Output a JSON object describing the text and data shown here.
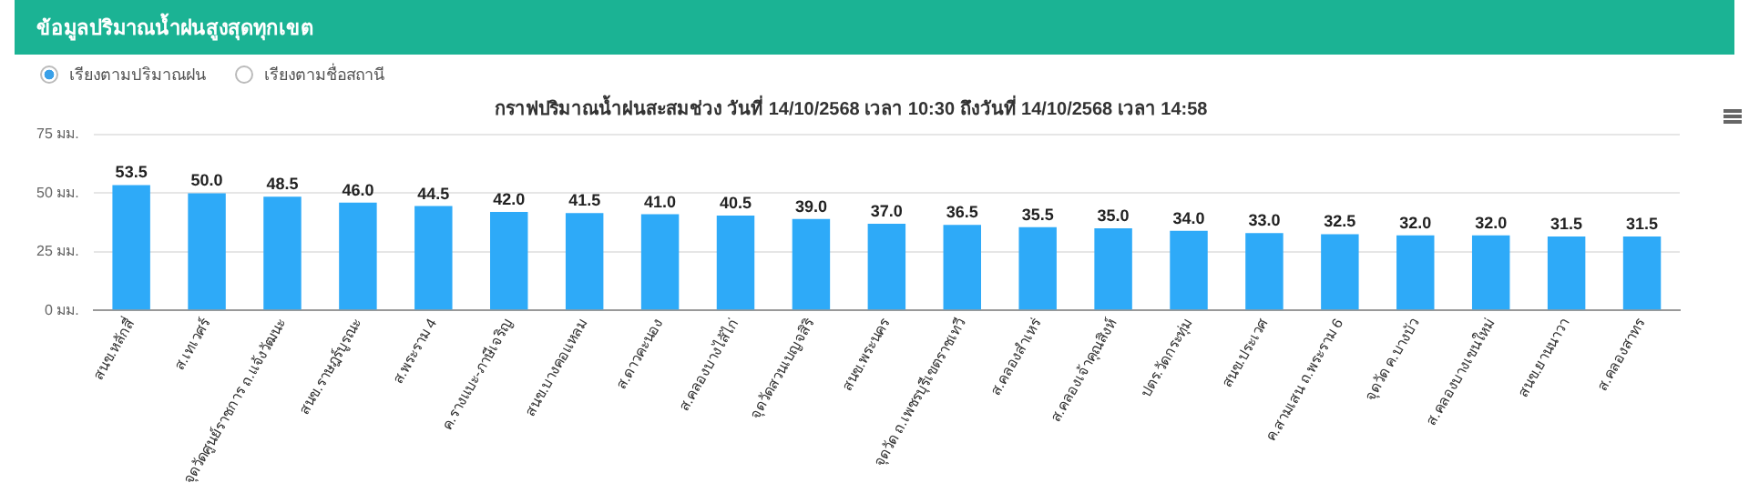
{
  "chart_data": {
    "type": "bar",
    "title": "กราฟปริมาณน้ำฝนสะสมช่วง วันที่ 14/10/2568 เวลา 10:30 ถึงวันที่ 14/10/2568 เวลา 14:58",
    "annotations": [
      "ข้อมูลปริมาณน้ำฝนสูงสุดทุกเขต",
      "เรียงตามปริมาณฝน",
      "เรียงตามชื่อสถานี"
    ],
    "categories": [
      "สนข.หลักสี่",
      "ส.เทเวศร์",
      "จุดวัดศูนย์ราชการ ถ.แจ้งวัฒนะ",
      "สนข.ราษฎร์บูรณะ",
      "ส.พระราม 4",
      "ค.รางแบะ-ภาษีเจริญ",
      "สนข.บางคอแหลม",
      "ส.ดาวคะนอง",
      "ส.คลองบางไส้ไก่",
      "จุดวัดสวนเบญจสิริ",
      "สนข.พระนคร",
      "จุดวัด ถ.เพชรบุรีเขตราชเทวี",
      "ส.คลองสำเหร่",
      "ส.คลองเจ้าคุณสิงห์",
      "ปตร.วัดกระทุ่ม",
      "สนข.ประเวศ",
      "ค.สามเสน ถ.พระราม 6",
      "จุดวัด ค.บางบัว",
      "ส.คลองบางเขนใหม่",
      "สนข.ยานนาวา",
      "ส.คลองสาทร"
    ],
    "values": [
      53.5,
      50.0,
      48.5,
      46.0,
      44.5,
      42.0,
      41.5,
      41.0,
      40.5,
      39.0,
      37.0,
      36.5,
      35.5,
      35.0,
      34.0,
      33.0,
      32.5,
      32.0,
      32.0,
      31.5,
      31.5
    ],
    "value_labels": [
      "53.5",
      "50.0",
      "48.5",
      "46.0",
      "44.5",
      "42.0",
      "41.5",
      "41.0",
      "40.5",
      "39.0",
      "37.0",
      "36.5",
      "35.5",
      "35.0",
      "34.0",
      "33.0",
      "32.5",
      "32.0",
      "32.0",
      "31.5",
      "31.5"
    ],
    "color": "#2eaaf8",
    "ylim": [
      0,
      75
    ],
    "yticks": [
      {
        "value": 0,
        "label": "0 มม."
      },
      {
        "value": 25,
        "label": "25 มม."
      },
      {
        "value": 50,
        "label": "50 มม."
      },
      {
        "value": 75,
        "label": "75 มม."
      }
    ],
    "grid": "y",
    "legend": false
  }
}
